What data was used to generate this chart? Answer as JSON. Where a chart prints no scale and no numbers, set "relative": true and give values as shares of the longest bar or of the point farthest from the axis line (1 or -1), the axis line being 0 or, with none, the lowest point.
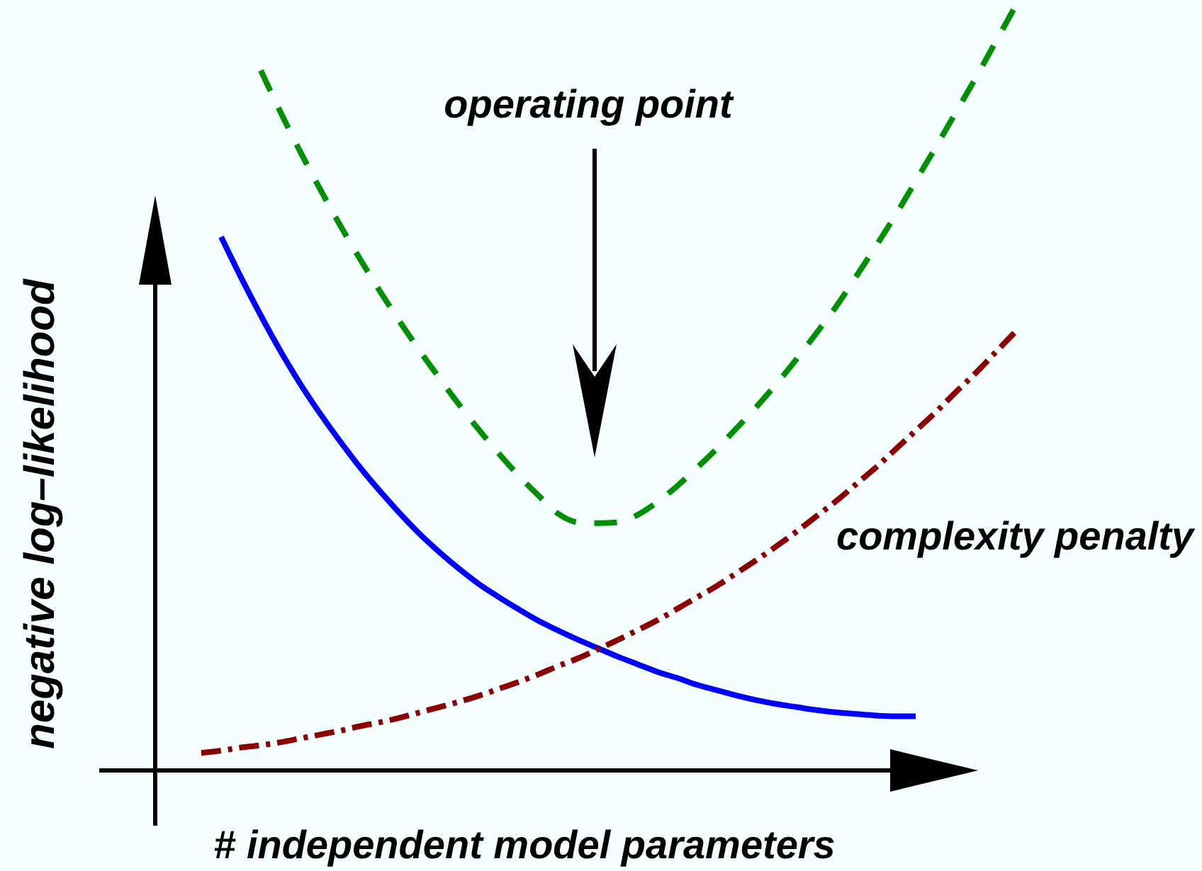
{
  "chart_data": {
    "type": "line",
    "xlabel": "# independent model parameters",
    "ylabel": "negative log–likelihood",
    "annotations": [
      "operating point"
    ],
    "relative": true,
    "categories": [
      null,
      null,
      null,
      null,
      null,
      null,
      null,
      null,
      null,
      null,
      null,
      null,
      null,
      null,
      null,
      null,
      null,
      null,
      null,
      null,
      null,
      null,
      null,
      null,
      null,
      null,
      null,
      null,
      null,
      null,
      null,
      null,
      null,
      null,
      null,
      null,
      null,
      null,
      null,
      null,
      null,
      null
    ],
    "series": [
      {
        "color": "#0000ff",
        "line_style": "solid",
        "values": [
          null,
          0.699,
          0.646,
          0.596,
          0.549,
          0.506,
          0.467,
          0.431,
          0.397,
          0.366,
          0.337,
          0.31,
          0.286,
          0.264,
          0.244,
          0.227,
          0.211,
          0.196,
          0.183,
          0.171,
          0.16,
          0.149,
          0.139,
          0.129,
          0.121,
          0.112,
          0.105,
          0.098,
          0.092,
          0.087,
          0.083,
          0.079,
          0.076,
          0.074,
          0.072,
          0.071,
          0.071,
          null,
          null,
          null,
          null,
          null
        ]
      },
      {
        "color": "#008f00",
        "line_style": "dashed",
        "values": [
          null,
          null,
          null,
          0.917,
          0.862,
          0.81,
          0.761,
          0.714,
          0.67,
          0.628,
          0.588,
          0.55,
          0.514,
          0.479,
          0.446,
          0.415,
          0.386,
          0.36,
          0.336,
          0.325,
          0.324,
          0.325,
          0.335,
          0.352,
          0.373,
          0.397,
          0.422,
          0.449,
          0.477,
          0.507,
          0.539,
          0.573,
          0.608,
          0.647,
          0.687,
          0.728,
          0.772,
          0.816,
          0.861,
          0.906,
          0.953,
          1
        ]
      },
      {
        "name": "complexity penalty",
        "color": "#8b0000",
        "line_style": "dashdot",
        "values": [
          0.023,
          0.026,
          0.03,
          0.033,
          0.037,
          0.042,
          0.047,
          0.052,
          0.058,
          0.063,
          0.069,
          0.076,
          0.083,
          0.09,
          0.098,
          0.107,
          0.116,
          0.126,
          0.137,
          0.147,
          0.159,
          0.171,
          0.184,
          0.197,
          0.212,
          0.227,
          0.242,
          0.259,
          0.276,
          0.294,
          0.313,
          0.333,
          0.353,
          0.375,
          0.397,
          0.421,
          0.445,
          0.469,
          0.495,
          0.52,
          0.547,
          0.574
        ]
      }
    ]
  }
}
